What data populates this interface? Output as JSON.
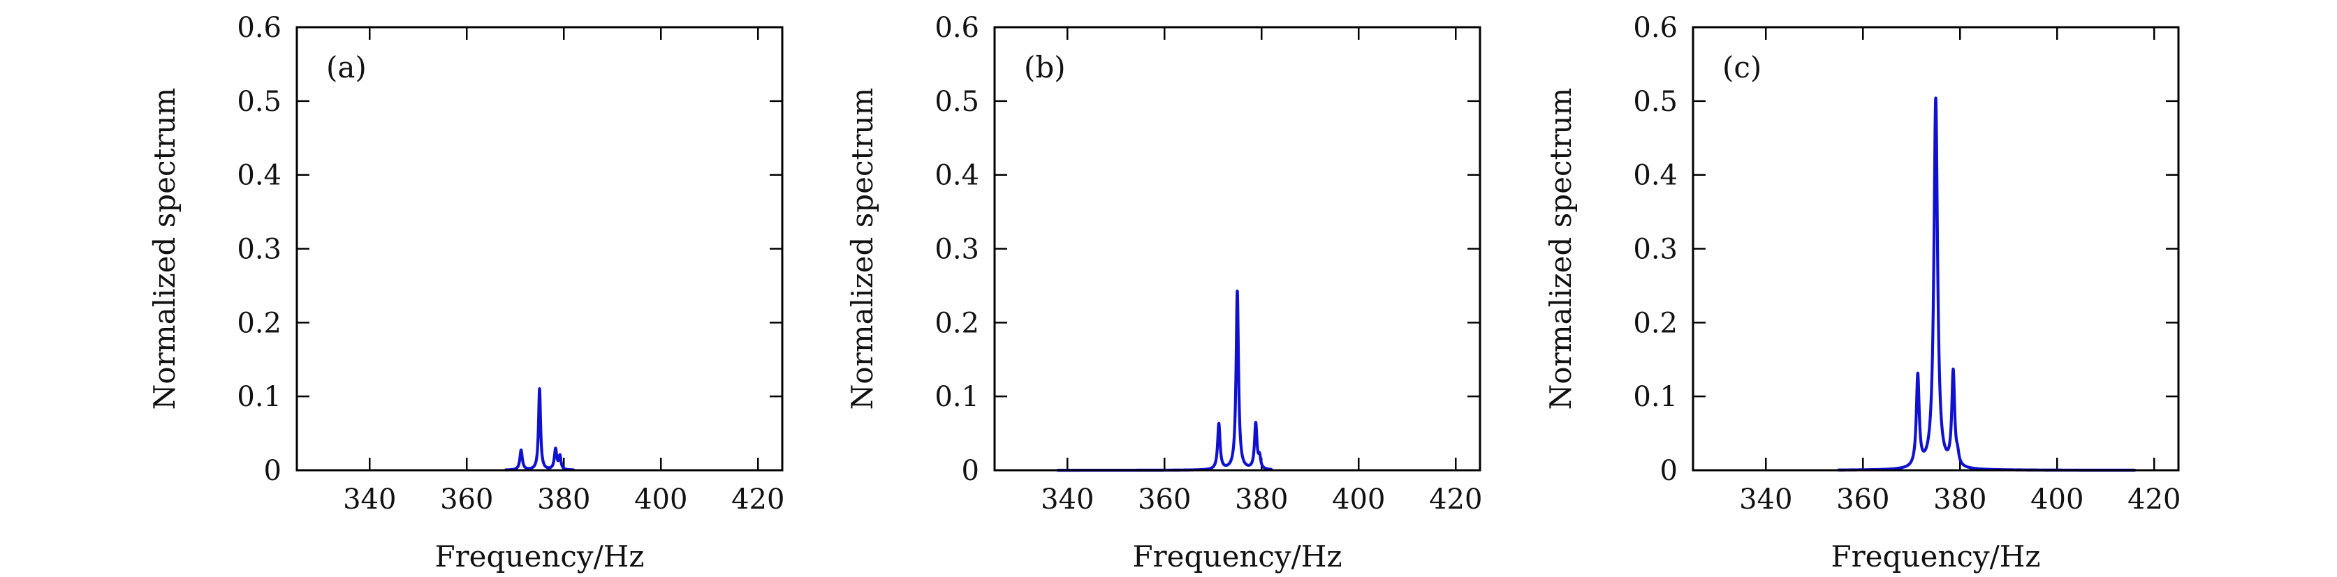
{
  "chart_data": [
    {
      "type": "line",
      "panel_label": "(a)",
      "xlabel": "Frequency/Hz",
      "ylabel": "Normalized spectrum",
      "xlim": [
        325,
        425
      ],
      "ylim": [
        0,
        0.6
      ],
      "xticks": [
        340,
        360,
        380,
        400,
        420
      ],
      "yticks": [
        0,
        0.1,
        0.2,
        0.3,
        0.4,
        0.5,
        0.6
      ],
      "ytick_labels": [
        "0",
        "0.1",
        "0.2",
        "0.3",
        "0.4",
        "0.5",
        "0.6"
      ],
      "grid": false,
      "series": [
        {
          "name": "spectrum",
          "color": "#1010d0",
          "peaks": [
            {
              "x": 371.2,
              "y": 0.027,
              "width": 0.3
            },
            {
              "x": 375.0,
              "y": 0.11,
              "width": 0.25
            },
            {
              "x": 378.3,
              "y": 0.028,
              "width": 0.3
            },
            {
              "x": 379.2,
              "y": 0.018,
              "width": 0.25
            }
          ],
          "x_range": [
            368,
            382
          ]
        }
      ]
    },
    {
      "type": "line",
      "panel_label": "(b)",
      "xlabel": "Frequency/Hz",
      "ylabel": "Normalized spectrum",
      "xlim": [
        325,
        425
      ],
      "ylim": [
        0,
        0.6
      ],
      "xticks": [
        340,
        360,
        380,
        400,
        420
      ],
      "yticks": [
        0,
        0.1,
        0.2,
        0.3,
        0.4,
        0.5,
        0.6
      ],
      "ytick_labels": [
        "0",
        "0.1",
        "0.2",
        "0.3",
        "0.4",
        "0.5",
        "0.6"
      ],
      "grid": false,
      "series": [
        {
          "name": "spectrum",
          "color": "#1010d0",
          "peaks": [
            {
              "x": 371.2,
              "y": 0.062,
              "width": 0.3
            },
            {
              "x": 375.0,
              "y": 0.242,
              "width": 0.3
            },
            {
              "x": 378.8,
              "y": 0.062,
              "width": 0.3
            },
            {
              "x": 379.6,
              "y": 0.015,
              "width": 0.25
            }
          ],
          "x_range": [
            338,
            382
          ]
        }
      ]
    },
    {
      "type": "line",
      "panel_label": "(c)",
      "xlabel": "Frequency/Hz",
      "ylabel": "Normalized spectrum",
      "xlim": [
        325,
        425
      ],
      "ylim": [
        0,
        0.6
      ],
      "xticks": [
        340,
        360,
        380,
        400,
        420
      ],
      "yticks": [
        0,
        0.1,
        0.2,
        0.3,
        0.4,
        0.5,
        0.6
      ],
      "ytick_labels": [
        "0",
        "0.1",
        "0.2",
        "0.3",
        "0.4",
        "0.5",
        "0.6"
      ],
      "grid": false,
      "series": [
        {
          "name": "spectrum",
          "color": "#1010d0",
          "peaks": [
            {
              "x": 371.3,
              "y": 0.124,
              "width": 0.35
            },
            {
              "x": 375.0,
              "y": 0.502,
              "width": 0.45
            },
            {
              "x": 378.6,
              "y": 0.128,
              "width": 0.35
            },
            {
              "x": 379.5,
              "y": 0.012,
              "width": 0.3
            }
          ],
          "x_range": [
            355,
            416
          ]
        }
      ]
    }
  ]
}
